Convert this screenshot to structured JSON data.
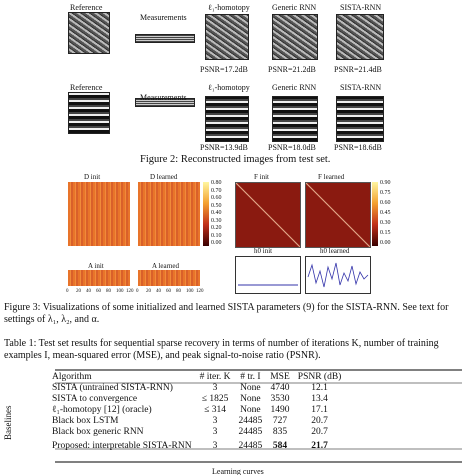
{
  "figure2": {
    "row1": {
      "labels": [
        "Reference",
        "Measurements",
        "ℓ₁-homotopy",
        "Generic RNN",
        "SISTA-RNN"
      ],
      "psnr": [
        "PSNR=17.2dB",
        "PSNR=21.2dB",
        "PSNR=21.4dB"
      ]
    },
    "row2": {
      "labels": [
        "Reference",
        "Measurements",
        "ℓ₁-homotopy",
        "Generic RNN",
        "SISTA-RNN"
      ],
      "psnr": [
        "PSNR=13.9dB",
        "PSNR=18.0dB",
        "PSNR=18.6dB"
      ]
    },
    "caption": "Figure 2:  Reconstructed images from test set."
  },
  "figure3": {
    "panels": [
      "D init",
      "D learned",
      "F init",
      "F learned",
      "A init",
      "A learned",
      "h0 init",
      "h0 learned"
    ],
    "d_colorbar": [
      "0.80",
      "0.70",
      "0.60",
      "0.50",
      "0.40",
      "0.30",
      "0.20",
      "0.10",
      "0.00"
    ],
    "f_colorbar": [
      "0.90",
      "0.75",
      "0.60",
      "0.45",
      "0.30",
      "0.15",
      "0.00"
    ],
    "x_ticks": [
      "0",
      "20",
      "40",
      "60",
      "80",
      "100",
      "120"
    ],
    "caption": "Figure 3: Visualizations of some initialized and learned SISTA parameters (9) for the SISTA-RNN. See text for settings of λ₁, λ₂, and α."
  },
  "table1": {
    "caption": "Table 1: Test set results for sequential sparse recovery in terms of number of iterations K, number of training examples I, mean-squared error (MSE), and peak signal-to-noise ratio (PSNR).",
    "header": [
      "Algorithm",
      "# iter. K",
      "# tr. I",
      "MSE",
      "PSNR (dB)"
    ],
    "group": "Baselines",
    "rows": [
      [
        "SISTA (untrained SISTA-RNN)",
        "3",
        "None",
        "4740",
        "12.1"
      ],
      [
        "SISTA to convergence",
        "≤ 1825",
        "None",
        "3530",
        "13.4"
      ],
      [
        "ℓ₁-homotopy [12] (oracle)",
        "≤ 314",
        "None",
        "1490",
        "17.1"
      ],
      [
        "Black box LSTM",
        "3",
        "24485",
        "727",
        "20.7"
      ],
      [
        "Black box generic RNN",
        "3",
        "24485",
        "835",
        "20.7"
      ],
      [
        "Proposed: interpretable SISTA-RNN",
        "3",
        "24485",
        "584",
        "21.7"
      ]
    ]
  },
  "footer": "Learning curves"
}
